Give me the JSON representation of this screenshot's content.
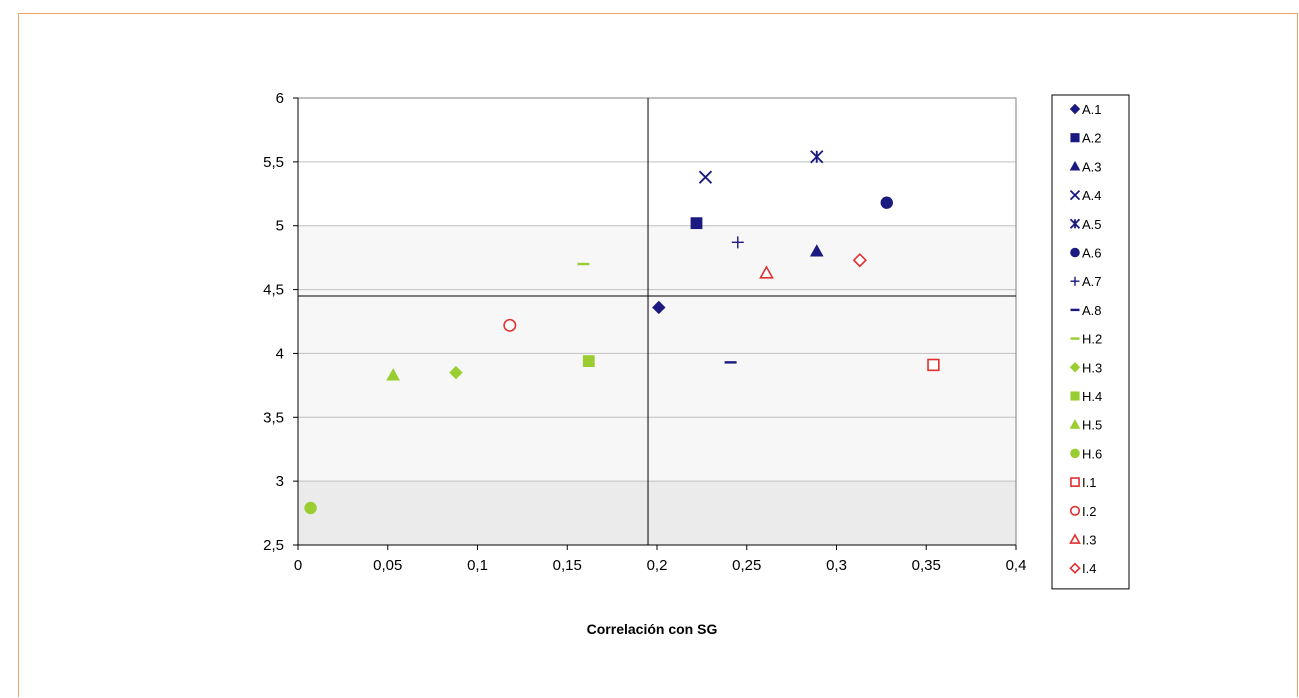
{
  "colors": {
    "frame_border": "#f4a460",
    "band_light": "#f7f7f7",
    "band_dark": "#ebebeb",
    "gridline": "#c0c0c0",
    "group_A": "#1a1a80",
    "group_H": "#9acd32",
    "group_I": "#e03030"
  },
  "chart_data": {
    "type": "scatter",
    "title": "",
    "xlabel": "Correlación con SG",
    "ylabel": "",
    "xlim": [
      0,
      0.4
    ],
    "ylim": [
      2.5,
      6
    ],
    "x_ticks": [
      "0",
      "0,05",
      "0,1",
      "0,15",
      "0,2",
      "0,25",
      "0,3",
      "0,35",
      "0,4"
    ],
    "y_ticks": [
      "2,5",
      "3",
      "3,5",
      "4",
      "4,5",
      "5",
      "5,5",
      "6"
    ],
    "grid": true,
    "legend_position": "right",
    "reference_lines": {
      "x": 0.195,
      "y": 4.45
    },
    "background_bands": [
      {
        "from": 2.5,
        "to": 3.0,
        "shade": "dark"
      },
      {
        "from": 3.0,
        "to": 5.0,
        "shade": "light"
      }
    ],
    "series": [
      {
        "name": "A.1",
        "x": 0.201,
        "y": 4.36,
        "marker": "diamond",
        "color": "#1a1a80",
        "filled": true
      },
      {
        "name": "A.2",
        "x": 0.222,
        "y": 5.02,
        "marker": "square",
        "color": "#1a1a80",
        "filled": true
      },
      {
        "name": "A.3",
        "x": 0.289,
        "y": 4.8,
        "marker": "triangle",
        "color": "#1a1a80",
        "filled": true
      },
      {
        "name": "A.4",
        "x": 0.227,
        "y": 5.38,
        "marker": "x",
        "color": "#1a1a80",
        "filled": true
      },
      {
        "name": "A.5",
        "x": 0.289,
        "y": 5.54,
        "marker": "star",
        "color": "#1a1a80",
        "filled": true
      },
      {
        "name": "A.6",
        "x": 0.328,
        "y": 5.18,
        "marker": "circle",
        "color": "#1a1a80",
        "filled": true
      },
      {
        "name": "A.7",
        "x": 0.245,
        "y": 4.87,
        "marker": "plus",
        "color": "#1a1a80",
        "filled": true
      },
      {
        "name": "A.8",
        "x": 0.241,
        "y": 3.93,
        "marker": "dash",
        "color": "#1a1a80",
        "filled": true
      },
      {
        "name": "H.2",
        "x": 0.159,
        "y": 4.7,
        "marker": "dash",
        "color": "#9acd32",
        "filled": true
      },
      {
        "name": "H.3",
        "x": 0.088,
        "y": 3.85,
        "marker": "diamond",
        "color": "#9acd32",
        "filled": true
      },
      {
        "name": "H.4",
        "x": 0.162,
        "y": 3.94,
        "marker": "square",
        "color": "#9acd32",
        "filled": true
      },
      {
        "name": "H.5",
        "x": 0.053,
        "y": 3.83,
        "marker": "triangle",
        "color": "#9acd32",
        "filled": true
      },
      {
        "name": "H.6",
        "x": 0.007,
        "y": 2.79,
        "marker": "circle",
        "color": "#9acd32",
        "filled": true
      },
      {
        "name": "I.1",
        "x": 0.354,
        "y": 3.91,
        "marker": "square",
        "color": "#e03030",
        "filled": false
      },
      {
        "name": "I.2",
        "x": 0.118,
        "y": 4.22,
        "marker": "circle",
        "color": "#e03030",
        "filled": false
      },
      {
        "name": "I.3",
        "x": 0.261,
        "y": 4.63,
        "marker": "triangle",
        "color": "#e03030",
        "filled": false
      },
      {
        "name": "I.4",
        "x": 0.313,
        "y": 4.73,
        "marker": "diamond",
        "color": "#e03030",
        "filled": false
      }
    ]
  }
}
